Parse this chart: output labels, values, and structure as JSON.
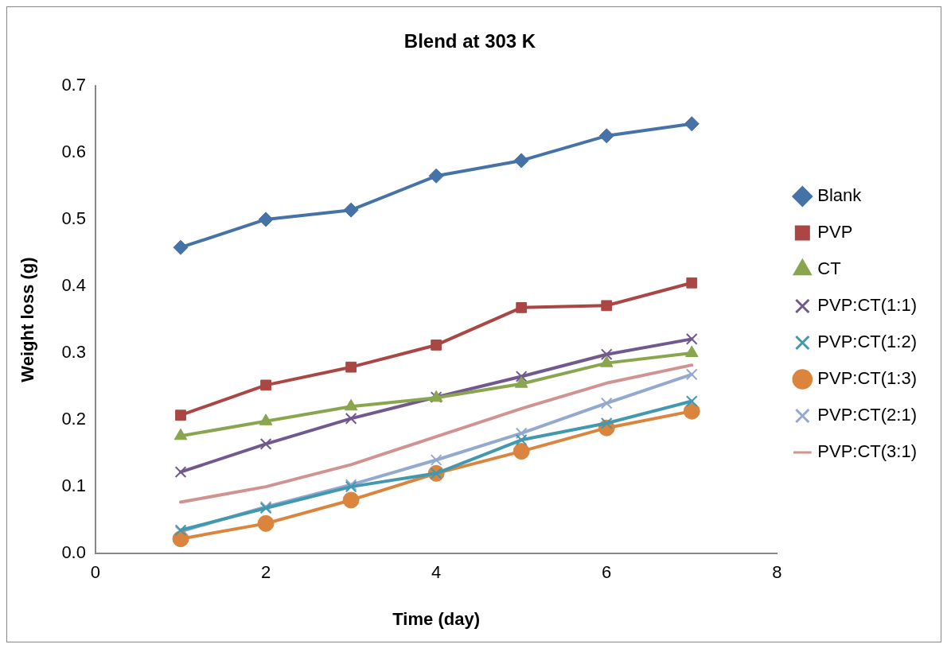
{
  "chart_data": {
    "type": "line",
    "title": "Blend at 303 K",
    "xlabel": "Time (day)",
    "ylabel": "Weight loss (g)",
    "x": [
      1,
      2,
      3,
      4,
      5,
      6,
      7
    ],
    "series": [
      {
        "name": "Blank",
        "color": "#4572a7",
        "marker": "diamond",
        "values": [
          0.458,
          0.5,
          0.514,
          0.565,
          0.588,
          0.625,
          0.643
        ]
      },
      {
        "name": "PVP",
        "color": "#aa4643",
        "marker": "square",
        "values": [
          0.207,
          0.252,
          0.279,
          0.312,
          0.368,
          0.371,
          0.405
        ]
      },
      {
        "name": "CT",
        "color": "#89a54e",
        "marker": "triangle",
        "values": [
          0.176,
          0.198,
          0.22,
          0.233,
          0.254,
          0.285,
          0.3
        ]
      },
      {
        "name": "PVP:CT(1:1)",
        "color": "#71588f",
        "marker": "cross",
        "values": [
          0.122,
          0.164,
          0.202,
          0.234,
          0.265,
          0.298,
          0.321
        ]
      },
      {
        "name": "PVP:CT(1:2)",
        "color": "#4198af",
        "marker": "cross",
        "values": [
          0.035,
          0.068,
          0.1,
          0.12,
          0.17,
          0.195,
          0.228
        ]
      },
      {
        "name": "PVP:CT(1:3)",
        "color": "#db843d",
        "marker": "circle",
        "values": [
          0.022,
          0.045,
          0.08,
          0.12,
          0.153,
          0.188,
          0.213
        ]
      },
      {
        "name": "PVP:CT(2:1)",
        "color": "#93a9cf",
        "marker": "cross",
        "values": [
          0.033,
          0.07,
          0.103,
          0.14,
          0.18,
          0.225,
          0.268
        ]
      },
      {
        "name": "PVP:CT(3:1)",
        "color": "#d09392",
        "marker": "none",
        "values": [
          0.077,
          0.1,
          0.133,
          0.175,
          0.217,
          0.255,
          0.282
        ]
      }
    ],
    "xlim": [
      0,
      8
    ],
    "xticks": [
      0,
      2,
      4,
      6,
      8
    ],
    "ylim": [
      0,
      0.7
    ],
    "yticks": [
      {
        "value": 0,
        "label": "0.0"
      },
      0.1,
      0.2,
      0.3,
      0.4,
      0.5,
      0.6,
      0.7
    ],
    "grid": false,
    "legend": "right",
    "line_style": "solid"
  }
}
